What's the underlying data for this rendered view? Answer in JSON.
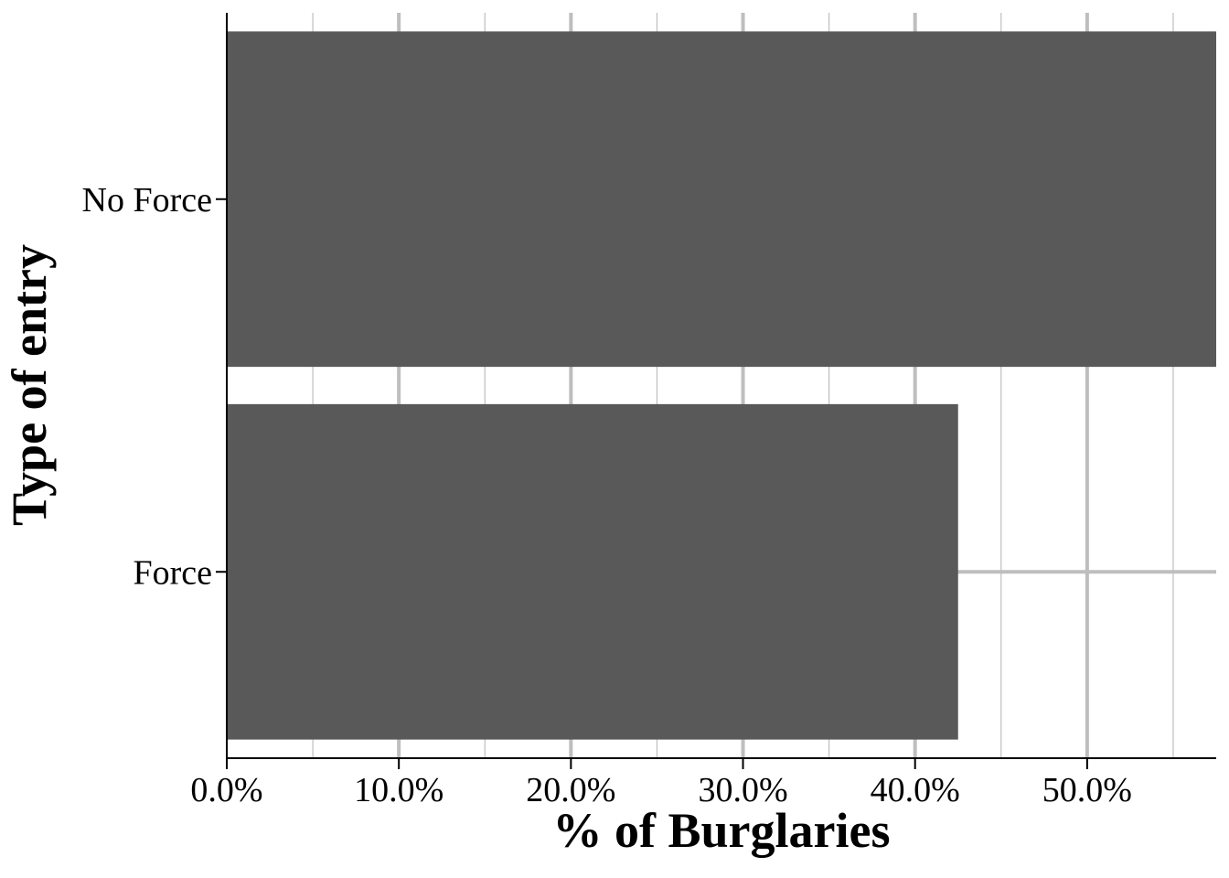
{
  "chart_data": {
    "type": "bar",
    "orientation": "horizontal",
    "categories": [
      "No Force",
      "Force"
    ],
    "values": [
      57.5,
      42.5
    ],
    "value_unit": "%",
    "xlabel": "% of Burglaries",
    "ylabel": "Type of entry",
    "xlim": [
      0,
      57.5
    ],
    "x_ticks": [
      0,
      10,
      20,
      30,
      40,
      50
    ],
    "x_tick_labels": [
      "0.0%",
      "10.0%",
      "20.0%",
      "30.0%",
      "40.0%",
      "50.0%"
    ],
    "grid": true,
    "bar_color": "#595959",
    "grid_color": "#bebebe"
  }
}
